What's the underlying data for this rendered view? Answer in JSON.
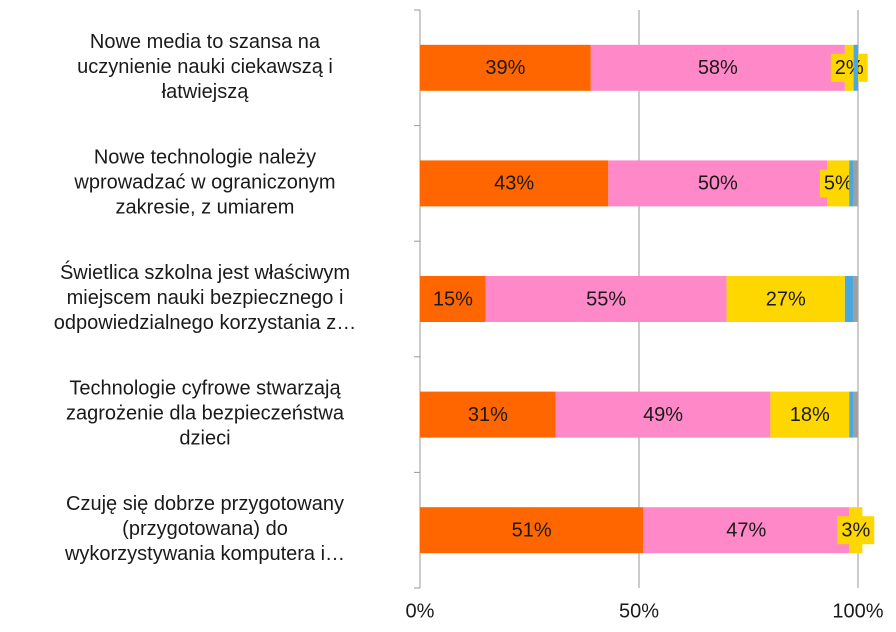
{
  "chart_data": {
    "type": "bar",
    "orientation": "horizontal",
    "stacked": true,
    "categories": [
      "Nowe media to szansa na\nuczynienie nauki ciekawszą i\nłatwiejszą",
      "Nowe technologie należy\nwprowadzać w ograniczonym\nzakresie, z umiarem",
      "Świetlica szkolna jest właściwym\nmiejscem nauki bezpiecznego i\nodpowiedzialnego korzystania z…",
      "Technologie cyfrowe stwarzają\nzagrożenie dla bezpieczeństwa\ndzieci",
      "Czuję się dobrze przygotowany\n(przygotowana) do\nwykorzystywania komputera i…"
    ],
    "series": [
      {
        "color": "#ff6600",
        "values": [
          39,
          43,
          15,
          31,
          51
        ],
        "value_labels": [
          "39%",
          "43%",
          "15%",
          "31%",
          "51%"
        ]
      },
      {
        "color": "#ff88c8",
        "values": [
          58,
          50,
          55,
          49,
          47
        ],
        "value_labels": [
          "58%",
          "50%",
          "55%",
          "49%",
          "47%"
        ]
      },
      {
        "color": "#ffd700",
        "values": [
          2,
          5,
          27,
          18,
          3
        ],
        "value_labels": [
          "2%",
          "5%",
          "27%",
          "18%",
          "3%"
        ]
      },
      {
        "color": "#4aa8e0",
        "values": [
          1,
          1,
          2,
          1,
          0
        ]
      },
      {
        "color": "#a0a0a0",
        "values": [
          0,
          1,
          1,
          1,
          0
        ]
      }
    ],
    "xlim": [
      0,
      100
    ],
    "xticks": [
      {
        "value": 0,
        "label": "0%"
      },
      {
        "value": 50,
        "label": "50%"
      },
      {
        "value": 100,
        "label": "100%"
      }
    ],
    "grid": true
  }
}
